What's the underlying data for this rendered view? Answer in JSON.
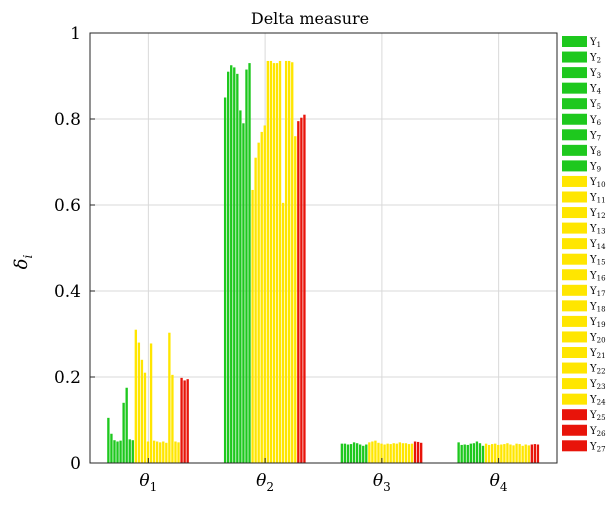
{
  "chart_data": {
    "type": "bar",
    "title": "Delta measure",
    "ylabel": "δ",
    "ylabel_sub": "i",
    "xlabel": "",
    "ylim": [
      0,
      1
    ],
    "yticks": [
      0,
      0.2,
      0.4,
      0.6,
      0.8,
      1
    ],
    "ytick_labels": [
      "0",
      "0.2",
      "0.4",
      "0.6",
      "0.8",
      "1"
    ],
    "grid": true,
    "legend_position": "right",
    "categories": [
      {
        "base": "θ",
        "sub": "1"
      },
      {
        "base": "θ",
        "sub": "2"
      },
      {
        "base": "θ",
        "sub": "3"
      },
      {
        "base": "θ",
        "sub": "4"
      }
    ],
    "colors": {
      "Y1-Y9": "#1ec81e",
      "Y10-Y24": "#ffe600",
      "Y25-Y27": "#e8140a"
    },
    "series": [
      {
        "base": "Y",
        "sub": "1",
        "color": "#1ec81e",
        "values": [
          0.105,
          0.85,
          0.045,
          0.048
        ]
      },
      {
        "base": "Y",
        "sub": "2",
        "color": "#1ec81e",
        "values": [
          0.068,
          0.91,
          0.045,
          0.042
        ]
      },
      {
        "base": "Y",
        "sub": "3",
        "color": "#1ec81e",
        "values": [
          0.053,
          0.925,
          0.043,
          0.043
        ]
      },
      {
        "base": "Y",
        "sub": "4",
        "color": "#1ec81e",
        "values": [
          0.05,
          0.92,
          0.044,
          0.042
        ]
      },
      {
        "base": "Y",
        "sub": "5",
        "color": "#1ec81e",
        "values": [
          0.052,
          0.905,
          0.048,
          0.045
        ]
      },
      {
        "base": "Y",
        "sub": "6",
        "color": "#1ec81e",
        "values": [
          0.14,
          0.82,
          0.046,
          0.046
        ]
      },
      {
        "base": "Y",
        "sub": "7",
        "color": "#1ec81e",
        "values": [
          0.175,
          0.79,
          0.043,
          0.05
        ]
      },
      {
        "base": "Y",
        "sub": "8",
        "color": "#1ec81e",
        "values": [
          0.055,
          0.915,
          0.04,
          0.046
        ]
      },
      {
        "base": "Y",
        "sub": "9",
        "color": "#1ec81e",
        "values": [
          0.053,
          0.93,
          0.043,
          0.04
        ]
      },
      {
        "base": "Y",
        "sub": "10",
        "color": "#ffe600",
        "values": [
          0.31,
          0.635,
          0.048,
          0.045
        ]
      },
      {
        "base": "Y",
        "sub": "11",
        "color": "#ffe600",
        "values": [
          0.28,
          0.71,
          0.05,
          0.042
        ]
      },
      {
        "base": "Y",
        "sub": "12",
        "color": "#ffe600",
        "values": [
          0.24,
          0.745,
          0.052,
          0.044
        ]
      },
      {
        "base": "Y",
        "sub": "13",
        "color": "#ffe600",
        "values": [
          0.21,
          0.77,
          0.047,
          0.045
        ]
      },
      {
        "base": "Y",
        "sub": "14",
        "color": "#ffe600",
        "values": [
          0.05,
          0.785,
          0.045,
          0.042
        ]
      },
      {
        "base": "Y",
        "sub": "15",
        "color": "#ffe600",
        "values": [
          0.278,
          0.935,
          0.043,
          0.043
        ]
      },
      {
        "base": "Y",
        "sub": "16",
        "color": "#ffe600",
        "values": [
          0.052,
          0.935,
          0.045,
          0.044
        ]
      },
      {
        "base": "Y",
        "sub": "17",
        "color": "#ffe600",
        "values": [
          0.05,
          0.93,
          0.044,
          0.046
        ]
      },
      {
        "base": "Y",
        "sub": "18",
        "color": "#ffe600",
        "values": [
          0.048,
          0.93,
          0.046,
          0.043
        ]
      },
      {
        "base": "Y",
        "sub": "19",
        "color": "#ffe600",
        "values": [
          0.05,
          0.935,
          0.045,
          0.041
        ]
      },
      {
        "base": "Y",
        "sub": "20",
        "color": "#ffe600",
        "values": [
          0.047,
          0.605,
          0.048,
          0.045
        ]
      },
      {
        "base": "Y",
        "sub": "21",
        "color": "#ffe600",
        "values": [
          0.303,
          0.935,
          0.046,
          0.044
        ]
      },
      {
        "base": "Y",
        "sub": "22",
        "color": "#ffe600",
        "values": [
          0.205,
          0.935,
          0.046,
          0.04
        ]
      },
      {
        "base": "Y",
        "sub": "23",
        "color": "#ffe600",
        "values": [
          0.05,
          0.932,
          0.044,
          0.043
        ]
      },
      {
        "base": "Y",
        "sub": "24",
        "color": "#ffe600",
        "values": [
          0.048,
          0.76,
          0.045,
          0.041
        ]
      },
      {
        "base": "Y",
        "sub": "25",
        "color": "#e8140a",
        "values": [
          0.198,
          0.795,
          0.05,
          0.043
        ]
      },
      {
        "base": "Y",
        "sub": "26",
        "color": "#e8140a",
        "values": [
          0.192,
          0.803,
          0.049,
          0.044
        ]
      },
      {
        "base": "Y",
        "sub": "27",
        "color": "#e8140a",
        "values": [
          0.195,
          0.81,
          0.047,
          0.043
        ]
      }
    ]
  }
}
